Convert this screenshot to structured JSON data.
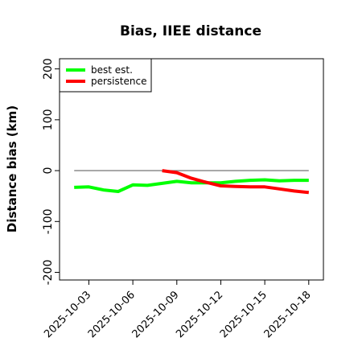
{
  "chart_data": {
    "type": "line",
    "title": "Bias, IIEE distance",
    "xlabel": "",
    "ylabel": "Distance bias (km)",
    "x_ticks": [
      "2025-10-03",
      "2025-10-06",
      "2025-10-09",
      "2025-10-12",
      "2025-10-15",
      "2025-10-18"
    ],
    "y_ticks": [
      -200,
      -100,
      0,
      100,
      200
    ],
    "xlim": [
      "2025-10-01",
      "2025-10-19"
    ],
    "ylim": [
      -215,
      220
    ],
    "grid": false,
    "legend": "top-left",
    "reference_line": {
      "y": 0,
      "x_start": "2025-10-02",
      "x_end": "2025-10-18",
      "color": "#808080"
    },
    "series": [
      {
        "name": "best est.",
        "color": "#00ff00",
        "x": [
          "2025-10-02",
          "2025-10-03",
          "2025-10-04",
          "2025-10-05",
          "2025-10-06",
          "2025-10-07",
          "2025-10-08",
          "2025-10-09",
          "2025-10-10",
          "2025-10-11",
          "2025-10-12",
          "2025-10-13",
          "2025-10-14",
          "2025-10-15",
          "2025-10-16",
          "2025-10-17",
          "2025-10-18"
        ],
        "values": [
          -33,
          -32,
          -38,
          -41,
          -28,
          -29,
          -25,
          -21,
          -24,
          -24,
          -24,
          -21,
          -19,
          -18,
          -20,
          -19,
          -19
        ]
      },
      {
        "name": "persistence",
        "color": "#ff0000",
        "x": [
          "2025-10-08",
          "2025-10-09",
          "2025-10-10",
          "2025-10-11",
          "2025-10-12",
          "2025-10-13",
          "2025-10-14",
          "2025-10-15",
          "2025-10-16",
          "2025-10-17",
          "2025-10-18"
        ],
        "values": [
          0,
          -4,
          -15,
          -23,
          -30,
          -31,
          -32,
          -32,
          -36,
          -40,
          -43
        ]
      }
    ]
  }
}
